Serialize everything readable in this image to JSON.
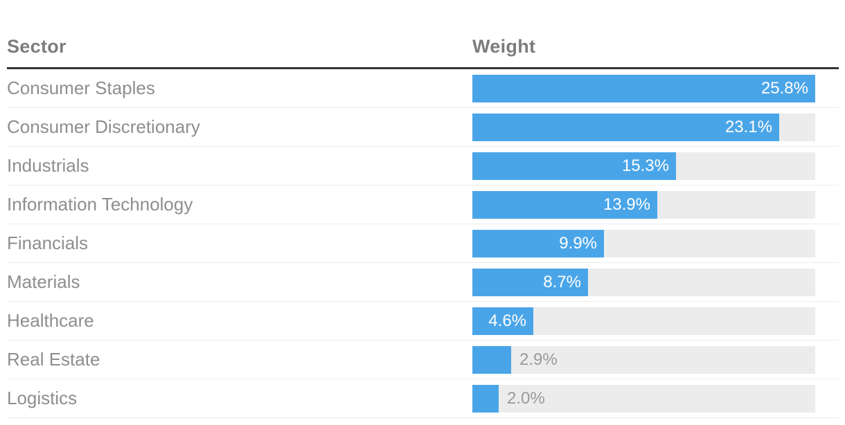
{
  "table": {
    "columns": [
      {
        "label": "Sector"
      },
      {
        "label": "Weight"
      }
    ],
    "rows": [
      {
        "sector": "Consumer Staples",
        "weight": 25.8,
        "value_label": "25.8%"
      },
      {
        "sector": "Consumer Discretionary",
        "weight": 23.1,
        "value_label": "23.1%"
      },
      {
        "sector": "Industrials",
        "weight": 15.3,
        "value_label": "15.3%"
      },
      {
        "sector": "Information Technology",
        "weight": 13.9,
        "value_label": "13.9%"
      },
      {
        "sector": "Financials",
        "weight": 9.9,
        "value_label": "9.9%"
      },
      {
        "sector": "Materials",
        "weight": 8.7,
        "value_label": "8.7%"
      },
      {
        "sector": "Healthcare",
        "weight": 4.6,
        "value_label": "4.6%"
      },
      {
        "sector": "Real Estate",
        "weight": 2.9,
        "value_label": "2.9%"
      },
      {
        "sector": "Logistics",
        "weight": 2.0,
        "value_label": "2.0%"
      }
    ]
  },
  "chart_data": {
    "type": "bar",
    "orientation": "horizontal",
    "categories": [
      "Consumer Staples",
      "Consumer Discretionary",
      "Industrials",
      "Information Technology",
      "Financials",
      "Materials",
      "Healthcare",
      "Real Estate",
      "Logistics"
    ],
    "values": [
      25.8,
      23.1,
      15.3,
      13.9,
      9.9,
      8.7,
      4.6,
      2.9,
      2.0
    ],
    "value_labels": [
      "25.8%",
      "23.1%",
      "15.3%",
      "13.9%",
      "9.9%",
      "8.7%",
      "4.6%",
      "2.9%",
      "2.0%"
    ],
    "title": "",
    "xlabel": "Weight",
    "ylabel": "Sector",
    "xlim": [
      0,
      25.8
    ],
    "bars_scaled_to_max_value": true,
    "grid": false,
    "legend": false
  },
  "colors": {
    "bar_fill": "#4AA5E8",
    "bar_track": "#ECECEC",
    "header_text": "#7D7D7D",
    "row_text": "#8E8E8E",
    "value_text_inside": "#FFFFFF",
    "value_text_outside": "#999999",
    "header_rule": "#333333",
    "row_divider": "#EDEDED"
  }
}
